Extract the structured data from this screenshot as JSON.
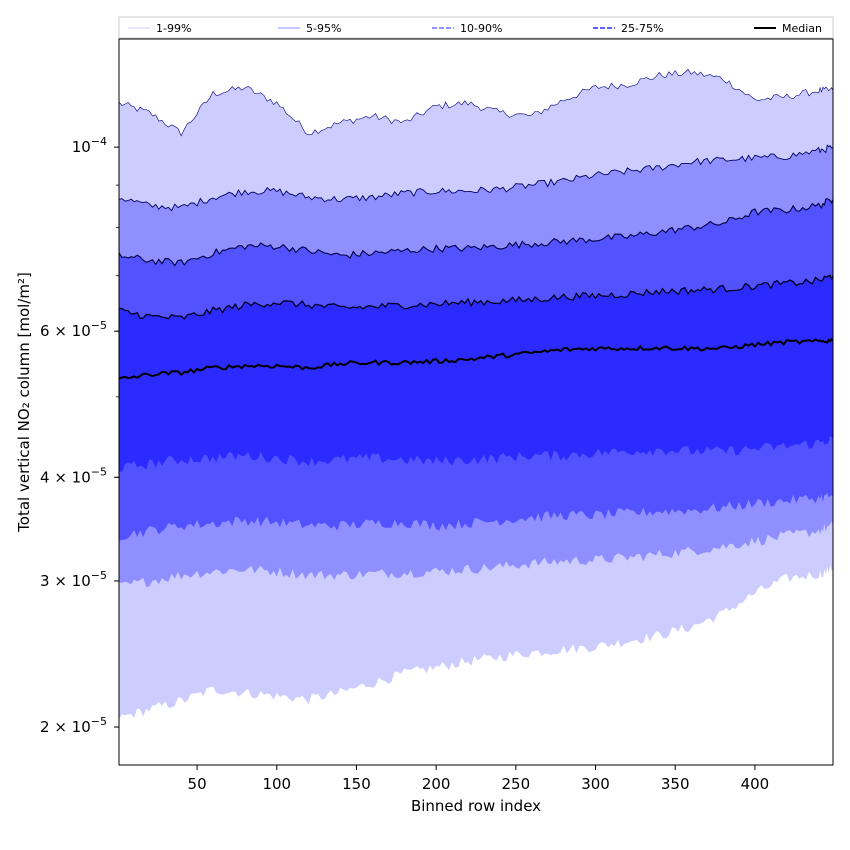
{
  "chart_data": {
    "type": "area",
    "xlabel": "Binned row index",
    "ylabel": "Total vertical NO₂ column [mol/m²]",
    "yscale": "log",
    "xlim": [
      1,
      449
    ],
    "ylim": [
      1.8e-05,
      0.000135
    ],
    "x_ticks": [
      50,
      100,
      150,
      200,
      250,
      300,
      350,
      400
    ],
    "y_ticks": [
      {
        "value": 2e-05,
        "mantissa": "2",
        "exponent": "−5"
      },
      {
        "value": 3e-05,
        "mantissa": "3",
        "exponent": "−5"
      },
      {
        "value": 4e-05,
        "mantissa": "4",
        "exponent": "−5"
      },
      {
        "value": 6e-05,
        "mantissa": "6",
        "exponent": "−5"
      },
      {
        "value": 0.0001,
        "mantissa": "",
        "exponent": "−4"
      }
    ],
    "x": [
      1,
      20,
      40,
      60,
      80,
      100,
      120,
      140,
      160,
      180,
      200,
      220,
      240,
      260,
      280,
      300,
      320,
      340,
      360,
      380,
      400,
      420,
      440,
      449
    ],
    "series": [
      {
        "name": "1-99%",
        "band": "outer",
        "color": "#ccccff",
        "lower": [
          2.05e-05,
          2.1e-05,
          2.15e-05,
          2.22e-05,
          2.2e-05,
          2.18e-05,
          2.16e-05,
          2.2e-05,
          2.26e-05,
          2.32e-05,
          2.36e-05,
          2.4e-05,
          2.43e-05,
          2.46e-05,
          2.48e-05,
          2.5e-05,
          2.54e-05,
          2.58e-05,
          2.64e-05,
          2.74e-05,
          2.9e-05,
          3.02e-05,
          3.06e-05,
          3.1e-05
        ],
        "upper": [
          0.000113,
          0.00011,
          0.000104,
          0.000116,
          0.000118,
          0.000113,
          0.000104,
          0.000107,
          0.000109,
          0.000107,
          0.000112,
          0.000113,
          0.00011,
          0.000109,
          0.000114,
          0.000118,
          0.000119,
          0.000122,
          0.000123,
          0.000121,
          0.000114,
          0.000115,
          0.000117,
          0.000117
        ]
      },
      {
        "name": "5-95%",
        "band": "second",
        "color": "#8f8fff",
        "lower": [
          2.95e-05,
          3e-05,
          3.05e-05,
          3.08e-05,
          3.1e-05,
          3.08e-05,
          3.05e-05,
          3.05e-05,
          3.06e-05,
          3.07e-05,
          3.08e-05,
          3.1e-05,
          3.12e-05,
          3.15e-05,
          3.17e-05,
          3.18e-05,
          3.2e-05,
          3.23e-05,
          3.26e-05,
          3.3e-05,
          3.35e-05,
          3.4e-05,
          3.45e-05,
          3.5e-05
        ],
        "upper": [
          8.7e-05,
          8.5e-05,
          8.45e-05,
          8.7e-05,
          8.85e-05,
          8.85e-05,
          8.7e-05,
          8.65e-05,
          8.7e-05,
          8.8e-05,
          8.85e-05,
          8.85e-05,
          8.9e-05,
          9e-05,
          9.1e-05,
          9.25e-05,
          9.35e-05,
          9.45e-05,
          9.6e-05,
          9.65e-05,
          9.7e-05,
          9.75e-05,
          9.9e-05,
          0.0001
        ]
      },
      {
        "name": "10-90%",
        "band": "third",
        "color": "#5252ff",
        "lower": [
          3.4e-05,
          3.45e-05,
          3.5e-05,
          3.52e-05,
          3.55e-05,
          3.53e-05,
          3.5e-05,
          3.5e-05,
          3.52e-05,
          3.53e-05,
          3.5e-05,
          3.52e-05,
          3.55e-05,
          3.58e-05,
          3.6e-05,
          3.6e-05,
          3.62e-05,
          3.64e-05,
          3.65e-05,
          3.68e-05,
          3.72e-05,
          3.75e-05,
          3.78e-05,
          3.8e-05
        ],
        "upper": [
          7.4e-05,
          7.3e-05,
          7.25e-05,
          7.45e-05,
          7.6e-05,
          7.6e-05,
          7.5e-05,
          7.4e-05,
          7.45e-05,
          7.5e-05,
          7.55e-05,
          7.55e-05,
          7.6e-05,
          7.65e-05,
          7.7e-05,
          7.75e-05,
          7.8e-05,
          7.9e-05,
          8e-05,
          8.1e-05,
          8.35e-05,
          8.4e-05,
          8.5e-05,
          8.65e-05
        ]
      },
      {
        "name": "25-75%",
        "band": "inner",
        "color": "#2b2bff",
        "lower": [
          4.1e-05,
          4.15e-05,
          4.2e-05,
          4.22e-05,
          4.25e-05,
          4.22e-05,
          4.18e-05,
          4.2e-05,
          4.22e-05,
          4.2e-05,
          4.18e-05,
          4.2e-05,
          4.22e-05,
          4.25e-05,
          4.25e-05,
          4.28e-05,
          4.3e-05,
          4.32e-05,
          4.3e-05,
          4.3e-05,
          4.33e-05,
          4.36e-05,
          4.4e-05,
          4.45e-05
        ],
        "upper": [
          6.35e-05,
          6.25e-05,
          6.22e-05,
          6.35e-05,
          6.45e-05,
          6.5e-05,
          6.45e-05,
          6.4e-05,
          6.42e-05,
          6.45e-05,
          6.47e-05,
          6.5e-05,
          6.52e-05,
          6.55e-05,
          6.6e-05,
          6.62e-05,
          6.65e-05,
          6.7e-05,
          6.72e-05,
          6.75e-05,
          6.8e-05,
          6.85e-05,
          6.9e-05,
          7e-05
        ]
      },
      {
        "name": "Median",
        "band": "line",
        "color": "#000000",
        "values": [
          5.25e-05,
          5.32e-05,
          5.35e-05,
          5.42e-05,
          5.45e-05,
          5.45e-05,
          5.42e-05,
          5.48e-05,
          5.5e-05,
          5.5e-05,
          5.52e-05,
          5.55e-05,
          5.6e-05,
          5.65e-05,
          5.7e-05,
          5.72e-05,
          5.72e-05,
          5.73e-05,
          5.72e-05,
          5.72e-05,
          5.78e-05,
          5.82e-05,
          5.83e-05,
          5.85e-05
        ]
      }
    ],
    "legend": {
      "placement": "top, above plot",
      "entries": [
        "1-99%",
        "5-95%",
        "10-90%",
        "25-75%",
        "Median"
      ]
    }
  }
}
